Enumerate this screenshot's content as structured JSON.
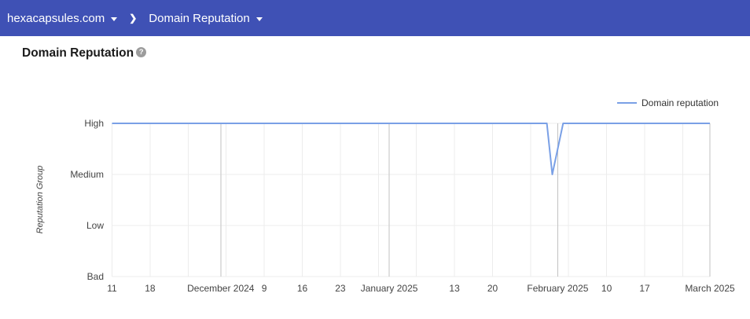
{
  "header": {
    "domain_label": "hexacapsules.com",
    "page_label": "Domain Reputation",
    "separator": "❯",
    "background": "#3F51B5"
  },
  "title": {
    "text": "Domain Reputation",
    "help_glyph": "?"
  },
  "legend": {
    "label": "Domain reputation"
  },
  "chart_data": {
    "type": "line",
    "title": "Domain Reputation",
    "xlabel": "",
    "ylabel": "Reputation Group",
    "y_categories": [
      "Bad",
      "Low",
      "Medium",
      "High"
    ],
    "x_start": "2024-11-11",
    "x_end": "2025-03-01",
    "grid": true,
    "legend_position": "top-right",
    "colors": {
      "line": "#7AA0E6",
      "grid_minor": "#ECECEC",
      "grid_month": "#C2C2C2",
      "tick_text": "#444444"
    },
    "x_ticks": [
      {
        "date": "2024-11-11",
        "label": "11"
      },
      {
        "date": "2024-11-18",
        "label": "18"
      },
      {
        "date": "2024-12-01",
        "label": "December 2024",
        "month": true
      },
      {
        "date": "2024-12-09",
        "label": "9"
      },
      {
        "date": "2024-12-16",
        "label": "16"
      },
      {
        "date": "2024-12-23",
        "label": "23"
      },
      {
        "date": "2025-01-01",
        "label": "January 2025",
        "month": true
      },
      {
        "date": "2025-01-13",
        "label": "13"
      },
      {
        "date": "2025-01-20",
        "label": "20"
      },
      {
        "date": "2025-02-01",
        "label": "February 2025",
        "month": true
      },
      {
        "date": "2025-02-10",
        "label": "10"
      },
      {
        "date": "2025-02-17",
        "label": "17"
      },
      {
        "date": "2025-03-01",
        "label": "March 2025",
        "month": true
      }
    ],
    "series": [
      {
        "name": "Domain reputation",
        "color": "#7AA0E6",
        "points": [
          {
            "date": "2024-11-11",
            "value": "High"
          },
          {
            "date": "2025-01-30",
            "value": "High"
          },
          {
            "date": "2025-01-31",
            "value": "Medium"
          },
          {
            "date": "2025-02-02",
            "value": "High"
          },
          {
            "date": "2025-03-01",
            "value": "High"
          }
        ]
      }
    ]
  }
}
